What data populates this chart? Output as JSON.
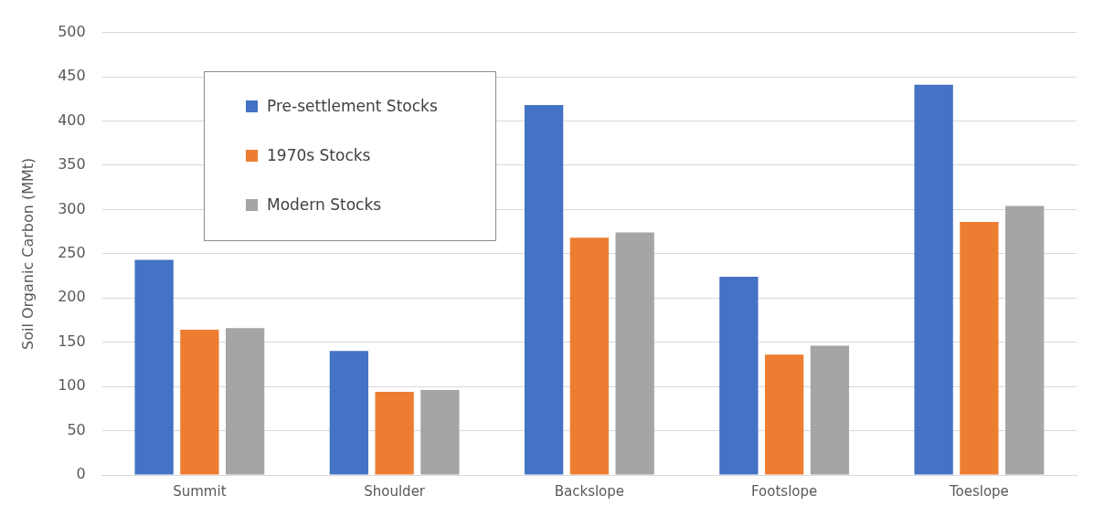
{
  "chart_data": {
    "type": "bar",
    "ylabel": "Soil Organic Carbon (MMt)",
    "categories": [
      "Summit",
      "Shoulder",
      "Backslope",
      "Footslope",
      "Toeslope"
    ],
    "series": [
      {
        "name": "Pre-settlement Stocks",
        "color": "#4472c4",
        "values": [
          243,
          140,
          418,
          224,
          441
        ]
      },
      {
        "name": "1970s Stocks",
        "color": "#ed7d31",
        "values": [
          164,
          94,
          268,
          136,
          286
        ]
      },
      {
        "name": "Modern Stocks",
        "color": "#a5a5a5",
        "values": [
          166,
          96,
          274,
          146,
          304
        ]
      }
    ],
    "ylim": [
      0,
      500
    ],
    "yticks": [
      0,
      50,
      100,
      150,
      200,
      250,
      300,
      350,
      400,
      450,
      500
    ],
    "grid": "y",
    "legend": "top left"
  }
}
